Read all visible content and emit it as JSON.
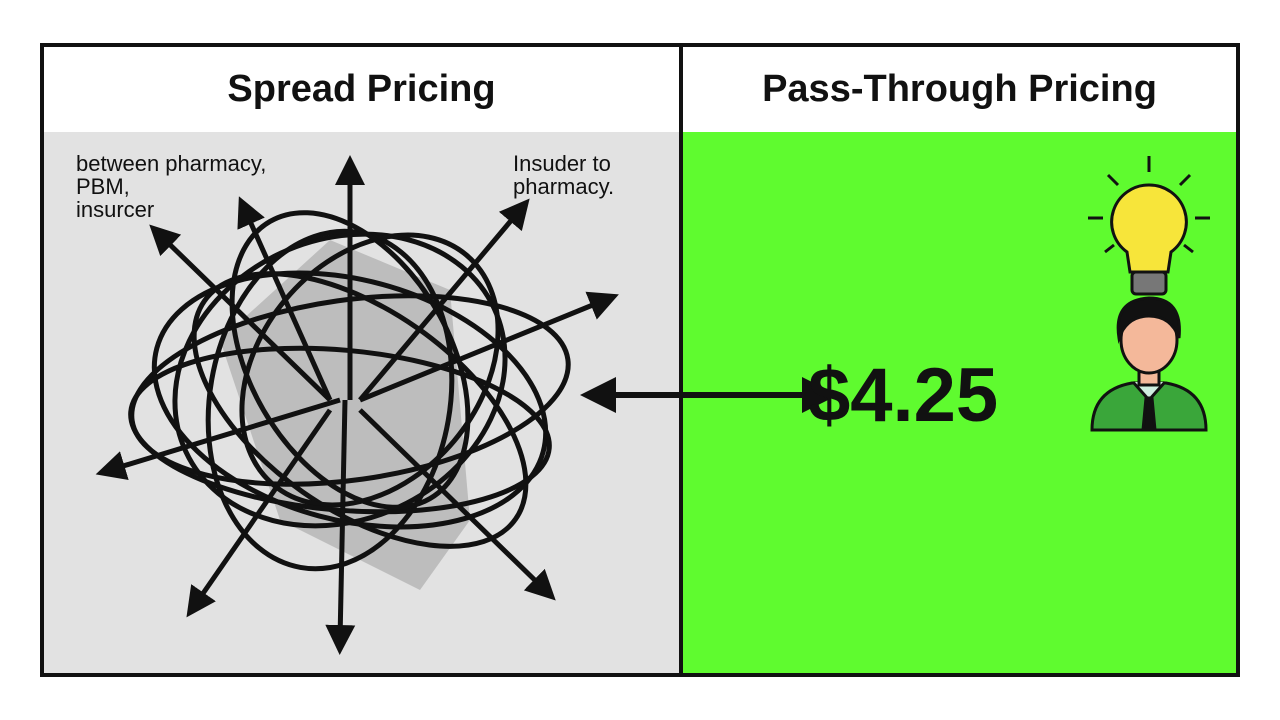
{
  "left_panel": {
    "title": "Spread Pricing",
    "note_left": "between pharmacy,\nPBM,\ninsurcer",
    "note_right": "Insuder to\npharmacy."
  },
  "right_panel": {
    "title": "Pass-Through Pricing",
    "price": "$4.25"
  },
  "colors": {
    "left_background": "#e2e2e2",
    "right_background": "#5ffb2f",
    "bulb": "#f7e53a",
    "shirt": "#3aa63a"
  },
  "icons": [
    "tangled-arrows-icon",
    "double-arrow-icon",
    "lightbulb-icon",
    "person-icon"
  ]
}
